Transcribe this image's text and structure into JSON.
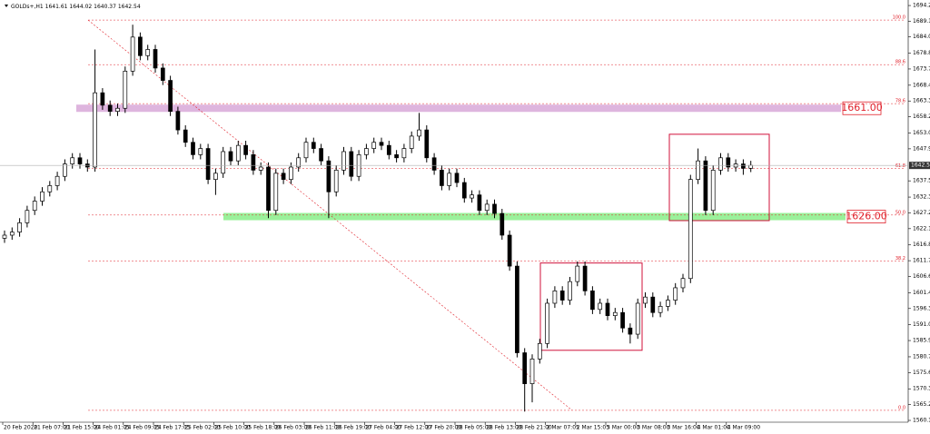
{
  "chart_data": {
    "type": "candlestick",
    "symbol": "GOLDs+,H1",
    "categories": [
      "20 Feb 2020",
      null,
      null,
      null,
      "21 Feb 07:00",
      null,
      null,
      null,
      "21 Feb 15:00",
      null,
      null,
      null,
      "24 Feb 01:05",
      null,
      null,
      null,
      "24 Feb 09:05",
      null,
      null,
      null,
      "24 Feb 17:05",
      null,
      null,
      null,
      "25 Feb 02:00",
      null,
      null,
      null,
      "25 Feb 10:00",
      null,
      null,
      null,
      "25 Feb 18:00",
      null,
      null,
      null,
      "26 Feb 03:00",
      null,
      null,
      null,
      "26 Feb 11:00",
      null,
      null,
      null,
      "26 Feb 19:00",
      null,
      null,
      null,
      "27 Feb 04:00",
      null,
      null,
      null,
      "27 Feb 12:00",
      null,
      null,
      null,
      "27 Feb 20:00",
      null,
      null,
      null,
      "28 Feb 05:00",
      null,
      null,
      null,
      "28 Feb 13:00",
      null,
      null,
      null,
      "28 Feb 21:00",
      null,
      null,
      null,
      "2 Mar 07:05",
      null,
      null,
      null,
      "2 Mar 15:05",
      null,
      null,
      null,
      "3 Mar 00:00",
      null,
      null,
      null,
      "3 Mar 08:00",
      null,
      null,
      null,
      "3 Mar 16:00",
      null,
      null,
      null,
      "4 Mar 01:00",
      null,
      null,
      null,
      "4 Mar 09:00",
      null,
      null,
      null
    ],
    "open": [
      1619,
      1620,
      1621,
      1624,
      1628,
      1631,
      1634,
      1636,
      1639,
      1643,
      1645,
      1643,
      1642,
      1666,
      1662,
      1660,
      1661,
      1673,
      1684,
      1678,
      1680,
      1674,
      1670,
      1660,
      1654,
      1650,
      1646,
      1648,
      1638,
      1640,
      1647,
      1644,
      1649,
      1646,
      1641,
      1642,
      1628,
      1640,
      1638,
      1642,
      1645,
      1650,
      1648,
      1644,
      1634,
      1641,
      1647,
      1639,
      1646,
      1648,
      1650,
      1649,
      1646,
      1645,
      1648,
      1652,
      1654,
      1645,
      1641,
      1636,
      1640,
      1637,
      1632,
      1633,
      1628,
      1630,
      1627,
      1620,
      1610,
      1582,
      1572,
      1580,
      1585,
      1598,
      1602,
      1599,
      1605,
      1610,
      1602,
      1596,
      1598,
      1594,
      1595,
      1590,
      1588,
      1598,
      1600,
      1595,
      1597,
      1599,
      1603,
      1606,
      1638,
      1644,
      1628,
      1641,
      1645,
      1642,
      1643,
      1641.61
    ],
    "high": [
      1621.5,
      1622.5,
      1625.5,
      1629.5,
      1632.5,
      1635.5,
      1637.5,
      1640.5,
      1644.5,
      1646.5,
      1646.5,
      1644.5,
      1680,
      1667.5,
      1663.5,
      1662.5,
      1674.5,
      1688,
      1685.5,
      1681.5,
      1681.5,
      1675.5,
      1671.5,
      1661.5,
      1655.5,
      1651.5,
      1649.5,
      1649.5,
      1641.5,
      1648.5,
      1648.5,
      1650.5,
      1650.5,
      1647.5,
      1643.5,
      1643.5,
      1641.5,
      1641.5,
      1643.5,
      1646.5,
      1651.5,
      1651.5,
      1649.5,
      1645.5,
      1642.5,
      1648.5,
      1648.5,
      1647.5,
      1649.5,
      1651.5,
      1651.5,
      1650.5,
      1647.5,
      1649.5,
      1653.5,
      1659.5,
      1655.5,
      1646.5,
      1642.5,
      1641.5,
      1641.5,
      1638.5,
      1634.5,
      1634.5,
      1631.5,
      1631.5,
      1628.5,
      1621.5,
      1611.5,
      1583.5,
      1581.5,
      1586.5,
      1599.5,
      1603.5,
      1603.5,
      1606.5,
      1611.5,
      1611.5,
      1603.5,
      1599.5,
      1599.5,
      1596.5,
      1596.5,
      1591.5,
      1599.5,
      1601.5,
      1601.5,
      1598.5,
      1600.5,
      1604.5,
      1607.5,
      1639.5,
      1648,
      1645.5,
      1642.5,
      1646.5,
      1646.5,
      1644.5,
      1644.5,
      1644.02
    ],
    "low": [
      1617.5,
      1618.5,
      1619.5,
      1622.5,
      1626.5,
      1629.5,
      1632.5,
      1634.5,
      1637.5,
      1641.5,
      1641.5,
      1640.5,
      1640.5,
      1660.5,
      1658.5,
      1658.5,
      1659.5,
      1671.5,
      1676.5,
      1676.5,
      1672.5,
      1668.5,
      1658.5,
      1652.5,
      1648.5,
      1644.5,
      1644.5,
      1636.5,
      1633,
      1638.5,
      1642.5,
      1642.5,
      1644.5,
      1639.5,
      1639.5,
      1625.5,
      1626.5,
      1636.5,
      1636.5,
      1640.5,
      1643.5,
      1646.5,
      1642.5,
      1625.5,
      1632.5,
      1639.5,
      1637.5,
      1637.5,
      1644.5,
      1646.5,
      1647.5,
      1644.5,
      1643.5,
      1643.5,
      1646.5,
      1650.5,
      1643.5,
      1639.5,
      1634.5,
      1634.5,
      1635.5,
      1630.5,
      1630.5,
      1626.5,
      1626.5,
      1625.5,
      1618.5,
      1608.5,
      1580.5,
      1563,
      1566,
      1578.5,
      1583.5,
      1596.5,
      1597.5,
      1597.5,
      1603.5,
      1600.5,
      1594.5,
      1594.5,
      1592.5,
      1592.5,
      1588.5,
      1585,
      1586.5,
      1596.5,
      1593.5,
      1593.5,
      1595.5,
      1597.5,
      1601.5,
      1604.5,
      1636.5,
      1626.5,
      1626.5,
      1639.5,
      1640.5,
      1640.5,
      1639.5,
      1640.37
    ],
    "close": [
      1620,
      1621,
      1624,
      1628,
      1631,
      1634,
      1636,
      1639,
      1643,
      1645,
      1643,
      1642,
      1666,
      1662,
      1660,
      1661,
      1673,
      1684,
      1678,
      1680,
      1674,
      1670,
      1660,
      1654,
      1650,
      1646,
      1648,
      1638,
      1640,
      1647,
      1644,
      1649,
      1646,
      1641,
      1642,
      1628,
      1640,
      1638,
      1642,
      1645,
      1650,
      1648,
      1644,
      1634,
      1641,
      1647,
      1639,
      1646,
      1648,
      1650,
      1649,
      1646,
      1645,
      1648,
      1652,
      1654,
      1645,
      1641,
      1636,
      1640,
      1637,
      1632,
      1633,
      1628,
      1630,
      1627,
      1620,
      1610,
      1582,
      1572,
      1580,
      1585,
      1598,
      1602,
      1599,
      1605,
      1610,
      1602,
      1596,
      1598,
      1594,
      1595,
      1590,
      1588,
      1598,
      1600,
      1595,
      1597,
      1599,
      1603,
      1606,
      1638,
      1644,
      1628,
      1641,
      1645,
      1642,
      1643,
      1641.61,
      1642.54
    ],
    "ylim": [
      1558.1,
      1695.1
    ],
    "yticks": [
      {
        "value": 1694.2,
        "label": "1694.20"
      },
      {
        "value": 1689.15,
        "label": "1689.15"
      },
      {
        "value": 1684.05,
        "label": "1684.05"
      },
      {
        "value": 1678.8,
        "label": "1678.80"
      },
      {
        "value": 1673.7,
        "label": "1673.70"
      },
      {
        "value": 1668.45,
        "label": "1668.45"
      },
      {
        "value": 1663.35,
        "label": "1663.35"
      },
      {
        "value": 1658.25,
        "label": "1658.25"
      },
      {
        "value": 1653,
        "label": "1653.00"
      },
      {
        "value": 1647.9,
        "label": "1647.90"
      },
      {
        "value": 1637.55,
        "label": "1637.55"
      },
      {
        "value": 1632.3,
        "label": "1632.30"
      },
      {
        "value": 1627.2,
        "label": "1627.20"
      },
      {
        "value": 1622.1,
        "label": "1622.10"
      },
      {
        "value": 1616.85,
        "label": "1616.85"
      },
      {
        "value": 1611.75,
        "label": "1611.75"
      },
      {
        "value": 1606.65,
        "label": "1606.65"
      },
      {
        "value": 1601.4,
        "label": "1601.40"
      },
      {
        "value": 1596.3,
        "label": "1596.30"
      },
      {
        "value": 1591.05,
        "label": "1591.05"
      },
      {
        "value": 1585.95,
        "label": "1585.95"
      },
      {
        "value": 1580.7,
        "label": "1580.70"
      },
      {
        "value": 1575.6,
        "label": "1575.60"
      },
      {
        "value": 1570.35,
        "label": "1570.35"
      },
      {
        "value": 1565.25,
        "label": "1565.25"
      },
      {
        "value": 1560.15,
        "label": "1560.15"
      }
    ],
    "fib_levels": [
      {
        "label": "100.0",
        "value": 1689.5
      },
      {
        "label": "88.6",
        "value": 1675.1
      },
      {
        "label": "78.6",
        "value": 1662.5
      },
      {
        "label": "61.8",
        "value": 1641.5
      },
      {
        "label": "50.0",
        "value": 1626.5
      },
      {
        "label": "38.2",
        "value": 1611.6
      },
      {
        "label": "0.0",
        "value": 1563.4
      }
    ],
    "zones": [
      {
        "value": 1661,
        "label": "1661.00",
        "color": "#d8a8d8"
      },
      {
        "value": 1626,
        "label": "1626.00",
        "color": "#88ee88"
      }
    ],
    "boxes": [
      {
        "top": 1611,
        "bottom": 1582.8
      },
      {
        "top": 1652.6,
        "bottom": 1624.7
      }
    ],
    "bull_color": "#ffffff",
    "bear_color": "#000000",
    "line_color": "#e0202a"
  }
}
